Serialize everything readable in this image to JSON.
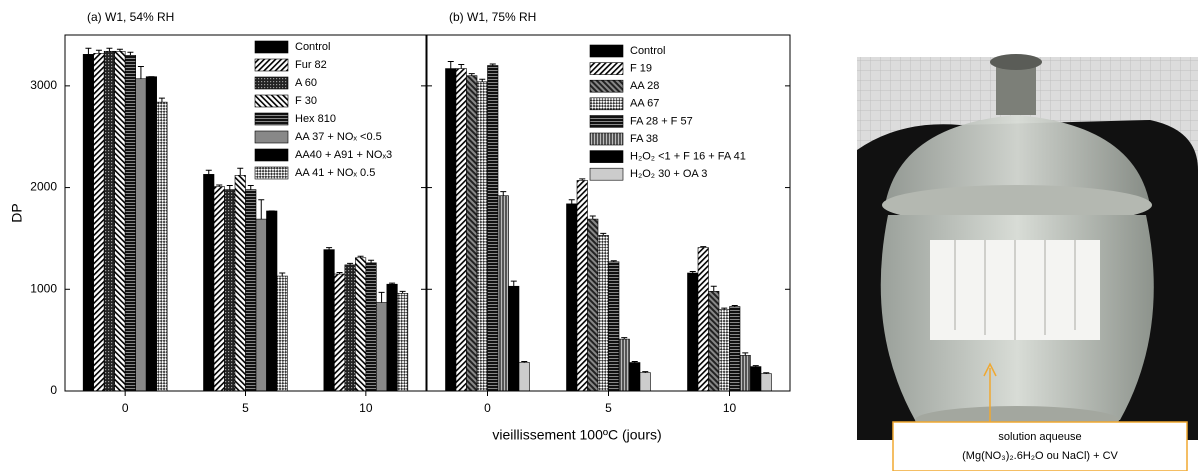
{
  "chart_data": [
    {
      "type": "bar",
      "title": "(a) W1, 54% RH",
      "ylabel": "DP",
      "categories": [
        "0",
        "5",
        "10"
      ],
      "ylim": [
        0,
        3500
      ],
      "yticks": [
        0,
        1000,
        2000,
        3000
      ],
      "show_ytick_labels": true,
      "series": [
        {
          "name": "Control",
          "color": "#000000",
          "pattern": "solid",
          "values": [
            3310,
            2130,
            1390
          ],
          "errors": [
            60,
            40,
            20
          ]
        },
        {
          "name": "Fur 82",
          "color": "#000000",
          "pattern": "diagonal",
          "values": [
            3320,
            2010,
            1150
          ],
          "errors": [
            30,
            15,
            15
          ]
        },
        {
          "name": "A 60",
          "color": "#333333",
          "pattern": "crosshatch",
          "values": [
            3340,
            1980,
            1240
          ],
          "errors": [
            30,
            40,
            15
          ]
        },
        {
          "name": "F 30",
          "color": "#000000",
          "pattern": "backdiagonal",
          "values": [
            3340,
            2120,
            1310
          ],
          "errors": [
            20,
            70,
            15
          ]
        },
        {
          "name": "Hex 810",
          "color": "#444444",
          "pattern": "horizontal",
          "values": [
            3300,
            1980,
            1260
          ],
          "errors": [
            30,
            40,
            25
          ]
        },
        {
          "name": "AA 37 + NOₓ <0.5",
          "color": "#888888",
          "pattern": "solid",
          "values": [
            3070,
            1690,
            870
          ],
          "errors": [
            120,
            190,
            100
          ]
        },
        {
          "name": "AA40 + A91 + NOₓ3",
          "color": "#000000",
          "pattern": "solid",
          "values": [
            3090,
            1770,
            1050
          ],
          "errors": [
            0,
            0,
            10
          ]
        },
        {
          "name": "AA 41 + NOₓ 0.5",
          "color": "#555555",
          "pattern": "checker",
          "values": [
            2840,
            1130,
            960
          ],
          "errors": [
            40,
            30,
            20
          ]
        }
      ]
    },
    {
      "type": "bar",
      "title": "(b) W1, 75% RH",
      "xlabel": "vieillissement 100ºC (jours)",
      "categories": [
        "0",
        "5",
        "10"
      ],
      "ylim": [
        0,
        3500
      ],
      "yticks": [
        0,
        1000,
        2000,
        3000
      ],
      "show_ytick_labels": false,
      "series": [
        {
          "name": "Control",
          "color": "#000000",
          "pattern": "solid",
          "values": [
            3170,
            1840,
            1160
          ],
          "errors": [
            70,
            40,
            15
          ]
        },
        {
          "name": "F 19",
          "color": "#000000",
          "pattern": "diagonal",
          "values": [
            3170,
            2070,
            1410
          ],
          "errors": [
            40,
            15,
            10
          ]
        },
        {
          "name": "AA 28",
          "color": "#333333",
          "pattern": "backdiagonal-dark",
          "values": [
            3100,
            1690,
            980
          ],
          "errors": [
            20,
            30,
            50
          ]
        },
        {
          "name": "AA 67",
          "color": "#555555",
          "pattern": "checker",
          "values": [
            3040,
            1530,
            800
          ],
          "errors": [
            25,
            20,
            15
          ]
        },
        {
          "name": "FA 28 + F 57",
          "color": "#444444",
          "pattern": "horizontal",
          "values": [
            3200,
            1270,
            830
          ],
          "errors": [
            15,
            10,
            10
          ]
        },
        {
          "name": "FA 38",
          "color": "#777777",
          "pattern": "vertical",
          "values": [
            1920,
            510,
            350
          ],
          "errors": [
            40,
            15,
            25
          ]
        },
        {
          "name": "H₂O₂ <1 + F 16 + FA 41",
          "color": "#000000",
          "pattern": "solid",
          "values": [
            1030,
            280,
            240
          ],
          "errors": [
            50,
            10,
            10
          ]
        },
        {
          "name": "H₂O₂ 30 + OA 3",
          "color": "#cccccc",
          "pattern": "solid",
          "values": [
            280,
            180,
            170
          ],
          "errors": [
            10,
            10,
            10
          ]
        }
      ]
    }
  ],
  "photo": {
    "caption": [
      "solution aqueuse",
      "(Mg(NO₃)₂.6H₂O ou NaCl) + CV"
    ]
  }
}
